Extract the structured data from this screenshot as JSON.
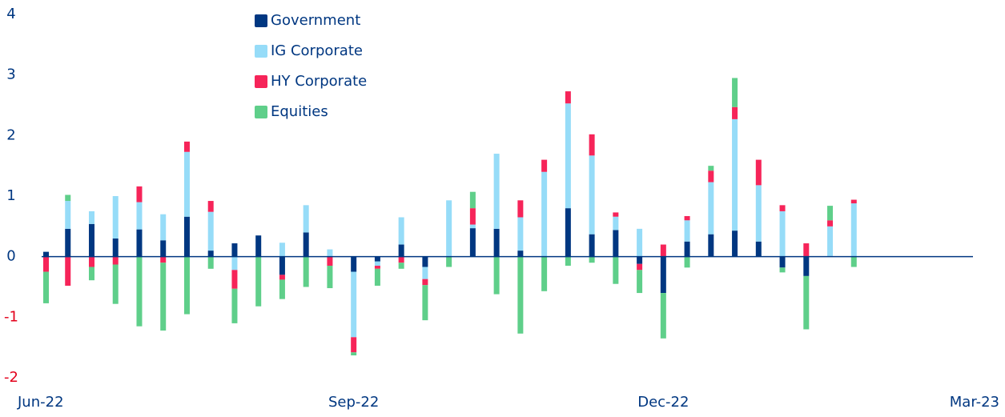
{
  "chart_data": {
    "type": "stacked_bar",
    "x": [
      0,
      1,
      2,
      3,
      4,
      5,
      6,
      7,
      8,
      9,
      10,
      11,
      12,
      13,
      14,
      15,
      16,
      17,
      18,
      19,
      20,
      21,
      22,
      23,
      24,
      25,
      26,
      27,
      28,
      29,
      30,
      31,
      32,
      33,
      34
    ],
    "xlim": [
      0,
      39
    ],
    "xticks": [
      {
        "value": 0,
        "label": "Jun-22"
      },
      {
        "value": 13,
        "label": "Sep-22"
      },
      {
        "value": 26,
        "label": "Dec-22"
      },
      {
        "value": 39,
        "label": "Mar-23"
      }
    ],
    "ylim": [
      -2,
      4
    ],
    "yticks": [
      -2,
      -1,
      0,
      1,
      2,
      3,
      4
    ],
    "series": [
      {
        "name": "Government",
        "color": "#003781",
        "values": [
          0.08,
          0.46,
          0.54,
          0.3,
          0.45,
          0.27,
          0.66,
          0.1,
          0.22,
          0.35,
          -0.3,
          0.4,
          0,
          -0.25,
          -0.08,
          0.2,
          -0.17,
          0,
          0.47,
          0.46,
          0.1,
          0,
          0.8,
          0.37,
          0.44,
          -0.12,
          -0.6,
          0.25,
          0.37,
          0.43,
          0.25,
          -0.18,
          -0.32,
          0,
          0
        ]
      },
      {
        "name": "IG Corporate",
        "color": "#96dcf8",
        "values": [
          0,
          0.46,
          0.21,
          0.7,
          0.45,
          0.43,
          1.07,
          0.64,
          -0.22,
          0,
          0.23,
          0.45,
          0.12,
          -1.08,
          -0.07,
          0.45,
          -0.2,
          0.93,
          0.06,
          1.24,
          0.55,
          1.4,
          1.73,
          1.3,
          0.22,
          0.46,
          0,
          0.35,
          0.86,
          1.84,
          0.93,
          0.75,
          0,
          0.5,
          0.88
        ]
      },
      {
        "name": "HY Corporate",
        "color": "#f62459",
        "values": [
          -0.25,
          -0.48,
          -0.17,
          -0.13,
          0.26,
          -0.1,
          0.17,
          0.18,
          -0.31,
          0,
          -0.08,
          0,
          -0.15,
          -0.25,
          -0.05,
          -0.1,
          -0.1,
          0,
          0.27,
          0,
          0.28,
          0.2,
          0.2,
          0.35,
          0.07,
          -0.1,
          0.2,
          0.07,
          0.19,
          0.2,
          0.42,
          0.1,
          0.22,
          0.1,
          0.06
        ]
      },
      {
        "name": "Equities",
        "color": "#5fcf8a",
        "values": [
          -0.52,
          0.1,
          -0.22,
          -0.65,
          -1.15,
          -1.12,
          -0.95,
          -0.2,
          -0.57,
          -0.82,
          -0.32,
          -0.5,
          -0.37,
          -0.05,
          -0.28,
          -0.1,
          -0.58,
          -0.17,
          0.27,
          -0.62,
          -1.27,
          -0.57,
          -0.15,
          -0.1,
          -0.45,
          -0.38,
          -0.75,
          -0.18,
          0.08,
          0.48,
          0,
          -0.08,
          -0.88,
          0.24,
          -0.17
        ]
      }
    ]
  }
}
